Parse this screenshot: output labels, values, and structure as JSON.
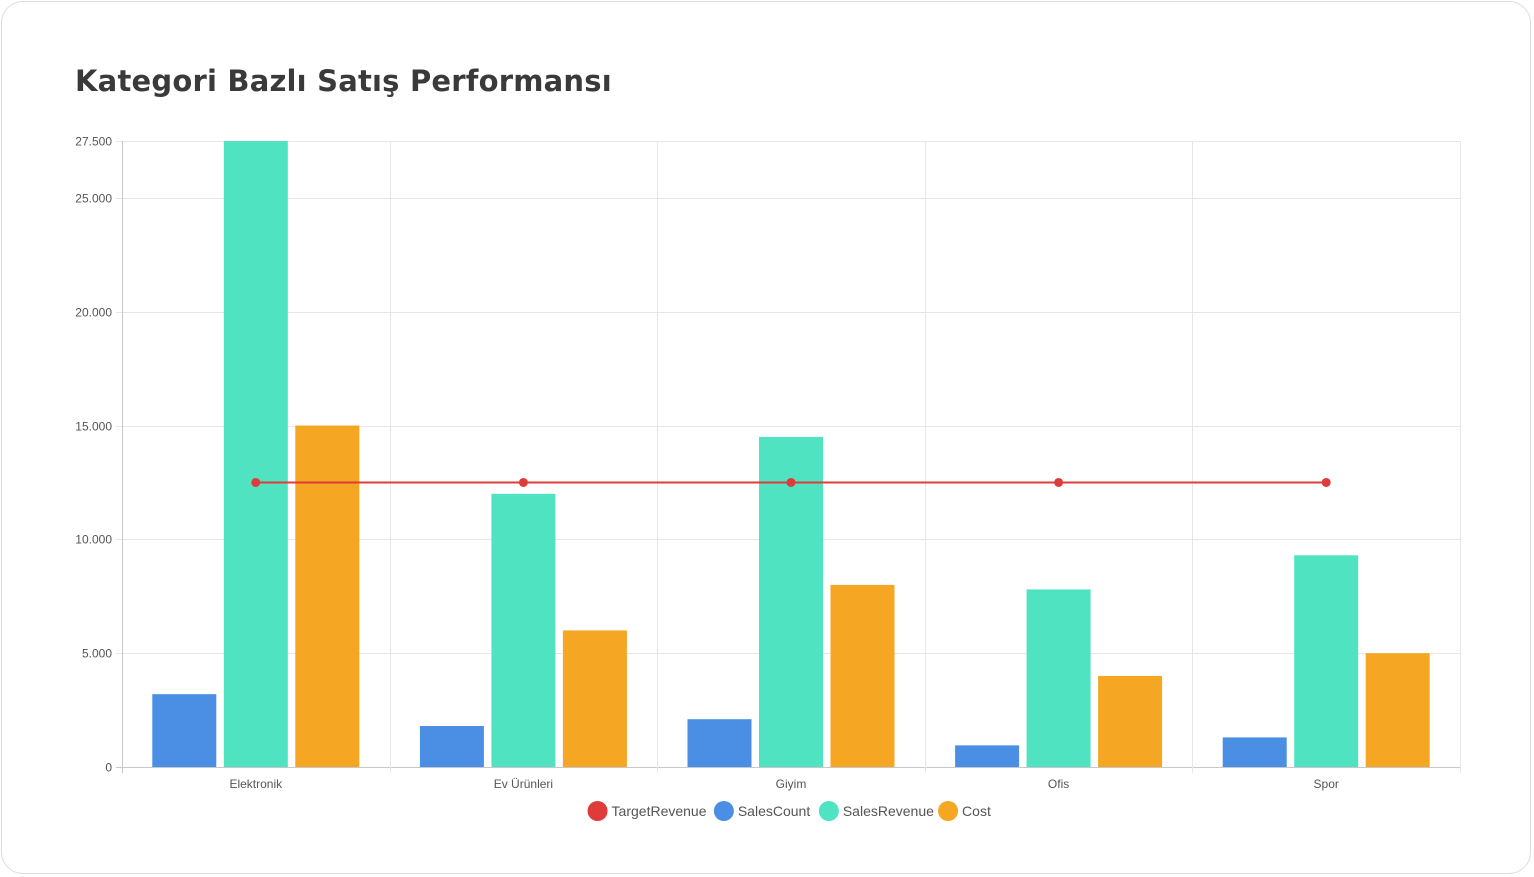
{
  "title": "Kategori Bazlı Satış Performansı",
  "chart_data": {
    "type": "bar",
    "title": "Kategori Bazlı Satış Performansı",
    "categories": [
      "Elektronik",
      "Ev Ürünleri",
      "Giyim",
      "Ofis",
      "Spor"
    ],
    "series": [
      {
        "name": "TargetRevenue",
        "type": "line",
        "color": "#e03b3b",
        "values": [
          12500,
          12500,
          12500,
          12500,
          12500
        ]
      },
      {
        "name": "SalesCount",
        "type": "bar",
        "color": "#4a8fe3",
        "values": [
          3200,
          1800,
          2100,
          950,
          1300
        ]
      },
      {
        "name": "SalesRevenue",
        "type": "bar",
        "color": "#4fe3c1",
        "values": [
          27500,
          12000,
          14500,
          7800,
          9300
        ]
      },
      {
        "name": "Cost",
        "type": "bar",
        "color": "#f5a623",
        "values": [
          15000,
          6000,
          8000,
          4000,
          5000
        ]
      }
    ],
    "y_ticks": [
      0,
      5000,
      10000,
      15000,
      20000,
      25000,
      27500
    ],
    "y_tick_labels": [
      "0",
      "5.000",
      "10.000",
      "15.000",
      "20.000",
      "25.000",
      "27.500"
    ],
    "ylim": [
      0,
      27500
    ],
    "grid": true,
    "legend_position": "bottom"
  }
}
